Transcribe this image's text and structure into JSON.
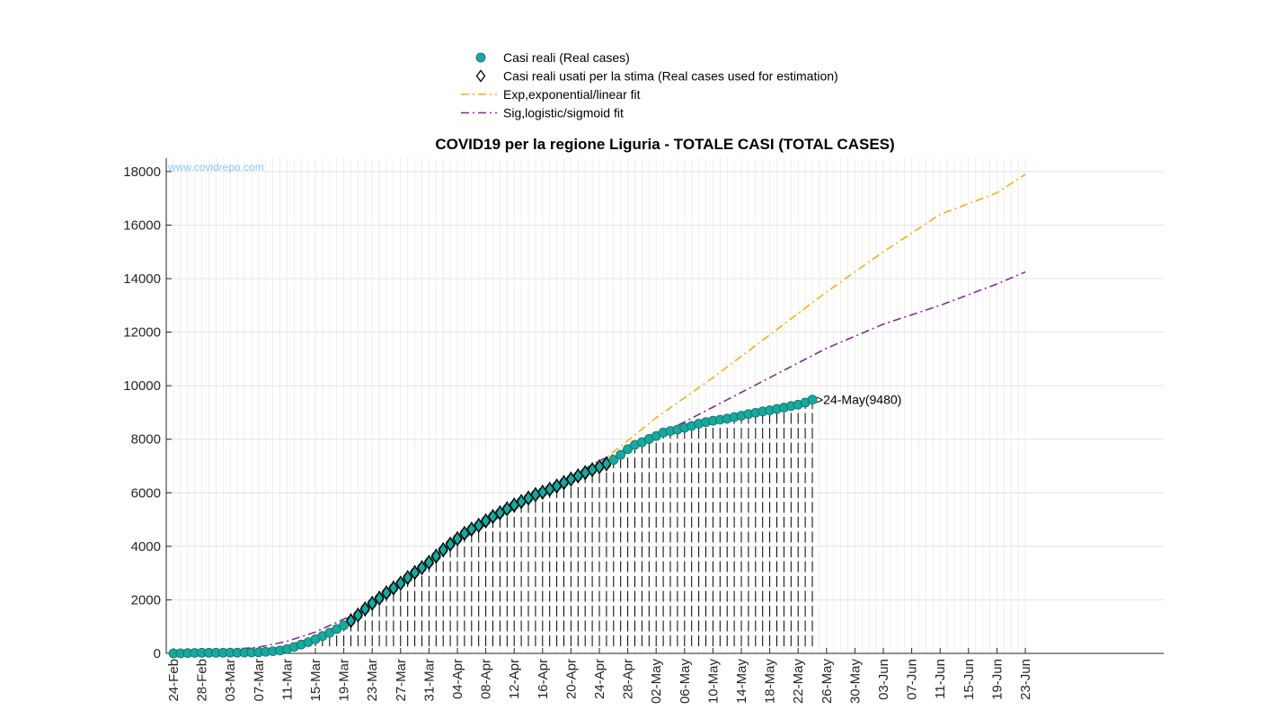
{
  "chart_data": {
    "type": "line",
    "title": "COVID19 per la regione Liguria - TOTALE CASI (TOTAL CASES)",
    "watermark": "www.covidrepo.com",
    "xlabel": "",
    "ylabel": "",
    "ylim": [
      0,
      18500
    ],
    "yticks": [
      0,
      2000,
      4000,
      6000,
      8000,
      10000,
      12000,
      14000,
      16000,
      18000
    ],
    "x_start_date": "2020-02-24",
    "x_end_date": "2020-06-23",
    "xtick_labels": [
      "24-Feb",
      "28-Feb",
      "03-Mar",
      "07-Mar",
      "11-Mar",
      "15-Mar",
      "19-Mar",
      "23-Mar",
      "27-Mar",
      "31-Mar",
      "04-Apr",
      "08-Apr",
      "12-Apr",
      "16-Apr",
      "20-Apr",
      "24-Apr",
      "28-Apr",
      "02-May",
      "06-May",
      "10-May",
      "14-May",
      "18-May",
      "22-May",
      "26-May",
      "30-May",
      "03-Jun",
      "07-Jun",
      "11-Jun",
      "15-Jun",
      "19-Jun",
      "23-Jun"
    ],
    "grid": true,
    "legend_position": "top-center",
    "legend": [
      {
        "label": "Casi reali (Real cases)",
        "kind": "marker-circle",
        "color": "#19a89e"
      },
      {
        "label": "Casi reali usati per la stima (Real cases used for estimation)",
        "kind": "marker-diamond",
        "color": "#000000"
      },
      {
        "label": "Exp,exponential/linear fit",
        "kind": "dashdot",
        "color": "#edb120"
      },
      {
        "label": "Sig,logistic/sigmoid fit",
        "kind": "dashdot",
        "color": "#7e2f8e"
      }
    ],
    "series": [
      {
        "name": "Casi reali (Real cases)",
        "color": "#19a89e",
        "x": [
          "2020-02-24",
          "2020-02-25",
          "2020-02-26",
          "2020-02-27",
          "2020-02-28",
          "2020-02-29",
          "2020-03-01",
          "2020-03-02",
          "2020-03-03",
          "2020-03-04",
          "2020-03-05",
          "2020-03-06",
          "2020-03-07",
          "2020-03-08",
          "2020-03-09",
          "2020-03-10",
          "2020-03-11",
          "2020-03-12",
          "2020-03-13",
          "2020-03-14",
          "2020-03-15",
          "2020-03-16",
          "2020-03-17",
          "2020-03-18",
          "2020-03-19",
          "2020-03-20",
          "2020-03-21",
          "2020-03-22",
          "2020-03-23",
          "2020-03-24",
          "2020-03-25",
          "2020-03-26",
          "2020-03-27",
          "2020-03-28",
          "2020-03-29",
          "2020-03-30",
          "2020-03-31",
          "2020-04-01",
          "2020-04-02",
          "2020-04-03",
          "2020-04-04",
          "2020-04-05",
          "2020-04-06",
          "2020-04-07",
          "2020-04-08",
          "2020-04-09",
          "2020-04-10",
          "2020-04-11",
          "2020-04-12",
          "2020-04-13",
          "2020-04-14",
          "2020-04-15",
          "2020-04-16",
          "2020-04-17",
          "2020-04-18",
          "2020-04-19",
          "2020-04-20",
          "2020-04-21",
          "2020-04-22",
          "2020-04-23",
          "2020-04-24",
          "2020-04-25",
          "2020-04-26",
          "2020-04-27",
          "2020-04-28",
          "2020-04-29",
          "2020-04-30",
          "2020-05-01",
          "2020-05-02",
          "2020-05-03",
          "2020-05-04",
          "2020-05-05",
          "2020-05-06",
          "2020-05-07",
          "2020-05-08",
          "2020-05-09",
          "2020-05-10",
          "2020-05-11",
          "2020-05-12",
          "2020-05-13",
          "2020-05-14",
          "2020-05-15",
          "2020-05-16",
          "2020-05-17",
          "2020-05-18",
          "2020-05-19",
          "2020-05-20",
          "2020-05-21",
          "2020-05-22",
          "2020-05-23",
          "2020-05-24"
        ],
        "values": [
          0,
          2,
          10,
          18,
          25,
          25,
          25,
          25,
          27,
          28,
          30,
          35,
          40,
          60,
          80,
          110,
          160,
          240,
          330,
          420,
          530,
          650,
          770,
          910,
          1050,
          1220,
          1430,
          1660,
          1870,
          2060,
          2260,
          2440,
          2620,
          2830,
          3020,
          3200,
          3400,
          3630,
          3870,
          4080,
          4280,
          4480,
          4640,
          4780,
          4950,
          5110,
          5250,
          5400,
          5540,
          5670,
          5800,
          5930,
          6020,
          6130,
          6250,
          6380,
          6510,
          6630,
          6750,
          6860,
          6970,
          7080,
          7230,
          7420,
          7630,
          7790,
          7890,
          8010,
          8120,
          8250,
          8310,
          8360,
          8430,
          8500,
          8580,
          8640,
          8690,
          8730,
          8770,
          8830,
          8880,
          8940,
          8990,
          9040,
          9080,
          9130,
          9180,
          9240,
          9290,
          9370,
          9480
        ]
      },
      {
        "name": "Casi reali usati per la stima (Real cases used for estimation)",
        "color": "#000000",
        "x_range": [
          "2020-03-20",
          "2020-04-25"
        ]
      },
      {
        "name": "Exp,exponential/linear fit",
        "color": "#edb120",
        "x": [
          "2020-03-07",
          "2020-03-15",
          "2020-03-20",
          "2020-03-25",
          "2020-03-31",
          "2020-04-08",
          "2020-04-16",
          "2020-04-24",
          "2020-05-02",
          "2020-05-10",
          "2020-05-18",
          "2020-05-26",
          "2020-06-03",
          "2020-06-11",
          "2020-06-19",
          "2020-06-23"
        ],
        "values": [
          0,
          600,
          1200,
          2200,
          3550,
          4800,
          6000,
          7100,
          8800,
          10300,
          11900,
          13500,
          15000,
          16400,
          17200,
          17900
        ]
      },
      {
        "name": "Sig,logistic/sigmoid fit",
        "color": "#7e2f8e",
        "x": [
          "2020-02-24",
          "2020-03-01",
          "2020-03-07",
          "2020-03-11",
          "2020-03-15",
          "2020-03-20",
          "2020-03-25",
          "2020-03-31",
          "2020-04-08",
          "2020-04-16",
          "2020-04-24",
          "2020-05-02",
          "2020-05-10",
          "2020-05-18",
          "2020-05-26",
          "2020-06-03",
          "2020-06-11",
          "2020-06-19",
          "2020-06-23"
        ],
        "values": [
          50,
          100,
          230,
          450,
          800,
          1400,
          2200,
          3500,
          4800,
          6000,
          7200,
          8100,
          9200,
          10300,
          11400,
          12300,
          13000,
          13800,
          14250
        ]
      }
    ],
    "annotations": [
      {
        "text": ">24-May(9480)",
        "x": "2020-05-24",
        "y": 9480
      }
    ]
  }
}
